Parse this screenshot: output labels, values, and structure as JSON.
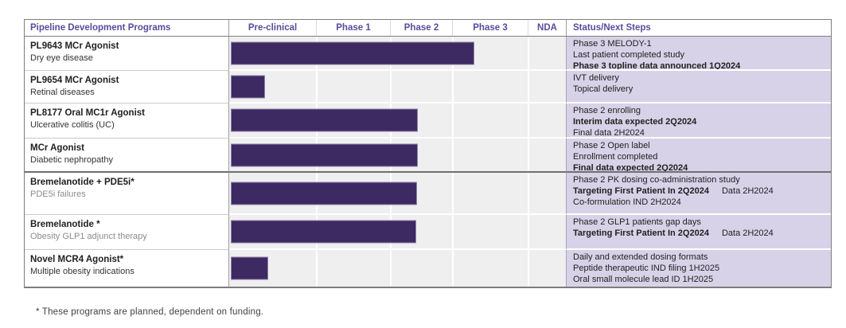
{
  "header": {
    "program_col": "Pipeline Development Programs",
    "phase_cols": [
      "Pre-clinical",
      "Phase 1",
      "Phase 2",
      "Phase 3",
      "NDA"
    ],
    "status_col": "Status/Next Steps"
  },
  "rows": [
    {
      "program": "PL9643 MCr Agonist",
      "indication": "Dry eye disease",
      "indication_muted": false,
      "group_end": false,
      "status_lines": [
        [
          {
            "text": "Phase 3 MELODY-1",
            "bold": false
          }
        ],
        [
          {
            "text": "Last patient completed study",
            "bold": false
          }
        ],
        [
          {
            "text": "Phase 3 topline data announced 1Q2024",
            "bold": true
          }
        ]
      ]
    },
    {
      "program": "PL9654 MCr Agonist",
      "indication": "Retinal diseases",
      "indication_muted": false,
      "group_end": false,
      "status_lines": [
        [
          {
            "text": "IVT delivery",
            "bold": false
          }
        ],
        [
          {
            "text": "Topical delivery",
            "bold": false
          }
        ]
      ]
    },
    {
      "program": "PL8177 Oral MC1r Agonist",
      "indication": "Ulcerative colitis (UC)",
      "indication_muted": false,
      "group_end": false,
      "status_lines": [
        [
          {
            "text": "Phase 2 enrolling",
            "bold": false
          }
        ],
        [
          {
            "text": "Interim data expected 2Q2024",
            "bold": true
          }
        ],
        [
          {
            "text": "Final data 2H2024",
            "bold": false
          }
        ]
      ]
    },
    {
      "program": "MCr Agonist",
      "indication": "Diabetic nephropathy",
      "indication_muted": false,
      "group_end": true,
      "status_lines": [
        [
          {
            "text": "Phase 2 Open label",
            "bold": false
          }
        ],
        [
          {
            "text": "Enrollment completed",
            "bold": false
          }
        ],
        [
          {
            "text": "Final data expected 2Q2024",
            "bold": true
          }
        ]
      ]
    },
    {
      "program": "Bremelanotide + PDE5i*",
      "indication": "PDE5i failures",
      "indication_muted": true,
      "group_end": false,
      "status_lines": [
        [
          {
            "text": "Phase 2 PK dosing co-administration study",
            "bold": false
          }
        ],
        [
          {
            "text": "Targeting First Patient In 2Q2024",
            "bold": true
          },
          {
            "text": "Data 2H2024",
            "bold": false
          }
        ],
        [
          {
            "text": "Co-formulation IND 2H2024",
            "bold": false
          }
        ]
      ]
    },
    {
      "program": "Bremelanotide *",
      "indication": "Obesity GLP1 adjunct therapy",
      "indication_muted": true,
      "group_end": false,
      "status_lines": [
        [
          {
            "text": "Phase 2 GLP1 patients gap days",
            "bold": false
          }
        ],
        [
          {
            "text": "Targeting First Patient In 2Q2024",
            "bold": true
          },
          {
            "text": "Data 2H2024",
            "bold": false
          }
        ]
      ]
    },
    {
      "program": "Novel MCR4 Agonist*",
      "indication": "Multiple obesity indications",
      "indication_muted": false,
      "group_end": false,
      "status_lines": [
        [
          {
            "text": "Daily and extended dosing formats",
            "bold": false
          }
        ],
        [
          {
            "text": "Peptide therapeutic IND filing 1H2025",
            "bold": false
          }
        ],
        [
          {
            "text": "Oral small molecule lead ID 1H2025",
            "bold": false
          }
        ]
      ]
    }
  ],
  "footnote": "* These programs are planned, dependent on funding.",
  "colors": {
    "header_text": "#5a4b9b",
    "bar_fill": "#3e2a62",
    "bar_border": "#8e81a8",
    "chart_bg": "#f0eff0",
    "status_bg": "#d8d2e8"
  },
  "chart_data": {
    "type": "bar",
    "orientation": "horizontal",
    "title": "Pipeline Development Programs",
    "x_axis_phases": [
      "Pre-clinical",
      "Phase 1",
      "Phase 2",
      "Phase 3",
      "NDA"
    ],
    "legend": "none",
    "bars": [
      {
        "program": "PL9643 MCr Agonist",
        "indication": "Dry eye disease",
        "start_phase": 0,
        "end_phase": 3.26,
        "stage_reached": "Phase 3"
      },
      {
        "program": "PL9654 MCr Agonist",
        "indication": "Retinal diseases",
        "start_phase": 0,
        "end_phase": 0.39,
        "stage_reached": "Pre-clinical"
      },
      {
        "program": "PL8177 Oral MC1r Agonist",
        "indication": "Ulcerative colitis (UC)",
        "start_phase": 0,
        "end_phase": 2.41,
        "stage_reached": "Phase 2"
      },
      {
        "program": "MCr Agonist",
        "indication": "Diabetic nephropathy",
        "start_phase": 0,
        "end_phase": 2.41,
        "stage_reached": "Phase 2"
      },
      {
        "program": "Bremelanotide + PDE5i*",
        "indication": "PDE5i failures",
        "start_phase": 0,
        "end_phase": 2.4,
        "stage_reached": "Phase 2"
      },
      {
        "program": "Bremelanotide *",
        "indication": "Obesity GLP1 adjunct therapy",
        "start_phase": 0,
        "end_phase": 2.38,
        "stage_reached": "Phase 2"
      },
      {
        "program": "Novel MCR4 Agonist*",
        "indication": "Multiple obesity indications",
        "start_phase": 0,
        "end_phase": 0.43,
        "stage_reached": "Pre-clinical"
      }
    ]
  }
}
